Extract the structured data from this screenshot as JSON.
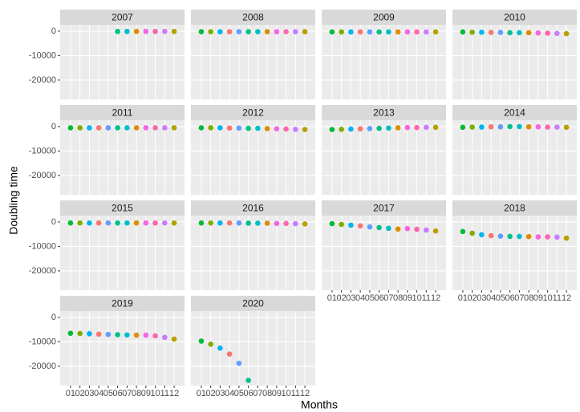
{
  "chart_data": {
    "type": "scatter",
    "x_label": "Months",
    "y_label": "Doubling time",
    "categories": [
      "01",
      "02",
      "03",
      "04",
      "05",
      "06",
      "07",
      "08",
      "09",
      "10",
      "11",
      "12"
    ],
    "colors": [
      "#00BA38",
      "#7CAE00",
      "#00B4F0",
      "#F8766D",
      "#619CFF",
      "#00C08B",
      "#00BFC4",
      "#DE8C00",
      "#F564E3",
      "#FF64B0",
      "#C77CFF",
      "#B79F00"
    ],
    "ylim": [
      -27900,
      2600
    ],
    "yticks": [
      0,
      -10000,
      -20000
    ],
    "grid": true,
    "facets": [
      {
        "title": "2007",
        "values": [
          null,
          null,
          null,
          null,
          null,
          -100,
          -100,
          -100,
          -100,
          -100,
          -100,
          -100
        ]
      },
      {
        "title": "2008",
        "values": [
          -200,
          -200,
          -200,
          -200,
          -200,
          -200,
          -200,
          -200,
          -200,
          -200,
          -200,
          -200
        ]
      },
      {
        "title": "2009",
        "values": [
          -300,
          -300,
          -300,
          -300,
          -300,
          -300,
          -300,
          -300,
          -300,
          -300,
          -300,
          -300
        ]
      },
      {
        "title": "2010",
        "values": [
          -300,
          -400,
          -400,
          -500,
          -500,
          -600,
          -600,
          -600,
          -700,
          -800,
          -900,
          -1000
        ]
      },
      {
        "title": "2011",
        "values": [
          -500,
          -500,
          -500,
          -500,
          -500,
          -500,
          -500,
          -500,
          -500,
          -500,
          -500,
          -500
        ]
      },
      {
        "title": "2012",
        "values": [
          -500,
          -500,
          -500,
          -600,
          -600,
          -700,
          -700,
          -800,
          -900,
          -1000,
          -1100,
          -1200
        ]
      },
      {
        "title": "2013",
        "values": [
          -1200,
          -1100,
          -1000,
          -900,
          -800,
          -700,
          -600,
          -500,
          -400,
          -400,
          -300,
          -300
        ]
      },
      {
        "title": "2014",
        "values": [
          -300,
          -200,
          -200,
          -100,
          -100,
          0,
          0,
          -100,
          -100,
          -200,
          -200,
          -300
        ]
      },
      {
        "title": "2015",
        "values": [
          -400,
          -400,
          -400,
          -400,
          -400,
          -400,
          -400,
          -400,
          -400,
          -400,
          -400,
          -400
        ]
      },
      {
        "title": "2016",
        "values": [
          -400,
          -400,
          -400,
          -400,
          -400,
          -500,
          -500,
          -500,
          -600,
          -600,
          -700,
          -800
        ]
      },
      {
        "title": "2017",
        "values": [
          -700,
          -1000,
          -1300,
          -1600,
          -2000,
          -2300,
          -2600,
          -2900,
          -2700,
          -3000,
          -3300,
          -3700
        ]
      },
      {
        "title": "2018",
        "values": [
          -3900,
          -4600,
          -5200,
          -5600,
          -5800,
          -5900,
          -5900,
          -6000,
          -6100,
          -6100,
          -6200,
          -6600
        ]
      },
      {
        "title": "2019",
        "values": [
          -6500,
          -6600,
          -6700,
          -6900,
          -7000,
          -7100,
          -7200,
          -7300,
          -7300,
          -7600,
          -8200,
          -8900
        ]
      },
      {
        "title": "2020",
        "values": [
          -9700,
          -11000,
          -12600,
          -15000,
          -18800,
          -25800,
          null,
          null,
          null,
          null,
          null,
          null
        ]
      }
    ]
  }
}
